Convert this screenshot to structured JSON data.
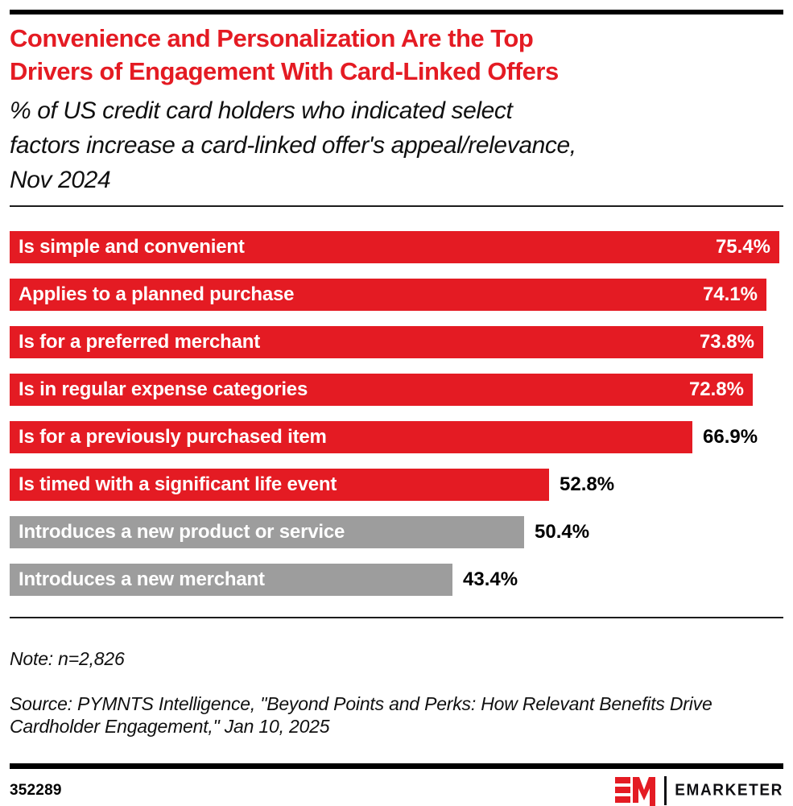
{
  "header": {
    "title": "Convenience and Personalization Are the Top\nDrivers of Engagement With Card-Linked Offers",
    "subtitle": "% of US credit card holders who indicated select\nfactors increase a card-linked offer's appeal/relevance,\nNov 2024"
  },
  "chart_data": {
    "type": "bar",
    "orientation": "horizontal",
    "unit": "%",
    "title": "Convenience and Personalization Are the Top Drivers of Engagement With Card-Linked Offers",
    "xlabel": "",
    "ylabel": "",
    "xlim": [
      0,
      75.8
    ],
    "grid": false,
    "legend": false,
    "value_label_position": "end-of-bar",
    "categories": [
      "Is simple and convenient",
      "Applies to a planned purchase",
      "Is for a preferred merchant",
      "Is in regular expense categories",
      "Is for a previously purchased item",
      "Is timed with a significant life event",
      "Introduces a new product or service",
      "Introduces a new merchant"
    ],
    "values": [
      75.4,
      74.1,
      73.8,
      72.8,
      66.9,
      52.8,
      50.4,
      43.4
    ],
    "bars": [
      {
        "label": "Is simple and convenient",
        "value": 75.4,
        "display": "75.4%",
        "color": "#e41b23",
        "value_inside": true
      },
      {
        "label": "Applies to a planned purchase",
        "value": 74.1,
        "display": "74.1%",
        "color": "#e41b23",
        "value_inside": true
      },
      {
        "label": "Is for a preferred merchant",
        "value": 73.8,
        "display": "73.8%",
        "color": "#e41b23",
        "value_inside": true
      },
      {
        "label": "Is in regular expense categories",
        "value": 72.8,
        "display": "72.8%",
        "color": "#e41b23",
        "value_inside": true
      },
      {
        "label": "Is for a previously purchased item",
        "value": 66.9,
        "display": "66.9%",
        "color": "#e41b23",
        "value_inside": false
      },
      {
        "label": "Is timed with a significant life event",
        "value": 52.8,
        "display": "52.8%",
        "color": "#e41b23",
        "value_inside": false
      },
      {
        "label": "Introduces a new product or service",
        "value": 50.4,
        "display": "50.4%",
        "color": "#9d9d9d",
        "value_inside": false
      },
      {
        "label": "Introduces a new merchant",
        "value": 43.4,
        "display": "43.4%",
        "color": "#9d9d9d",
        "value_inside": false
      }
    ]
  },
  "footnote": {
    "note": "Note: n=2,826",
    "source": "Source: PYMNTS Intelligence, \"Beyond Points and Perks: How Relevant Benefits Drive\nCardholder Engagement,\" Jan 10, 2025"
  },
  "footer": {
    "chart_id": "352289",
    "brand": "EMARKETER",
    "logo_monogram": "EM"
  },
  "colors": {
    "accent_red": "#e41b23",
    "bar_gray": "#9d9d9d",
    "title_red": "#e41b23",
    "rule_black": "#000000"
  }
}
